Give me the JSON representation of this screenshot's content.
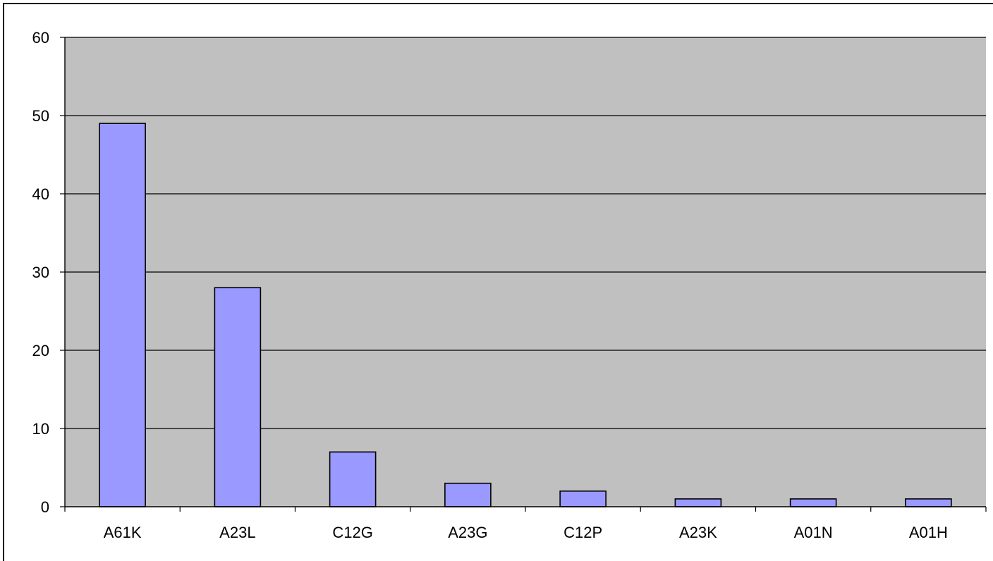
{
  "chart_data": {
    "type": "bar",
    "categories": [
      "A61K",
      "A23L",
      "C12G",
      "A23G",
      "C12P",
      "A23K",
      "A01N",
      "A01H"
    ],
    "series": [
      {
        "values": [
          49,
          28,
          7,
          3,
          2,
          1,
          1,
          1
        ]
      }
    ],
    "title": "",
    "xlabel": "",
    "ylabel": "",
    "ylim": [
      0,
      60
    ],
    "yticks": [
      0,
      10,
      20,
      30,
      40,
      50,
      60
    ],
    "grid": true,
    "legend": "none",
    "colors": {
      "plot_background": "#c0c0c0",
      "bar_fill": "#9999ff",
      "bar_stroke": "#000000",
      "gridline": "#000000"
    }
  }
}
